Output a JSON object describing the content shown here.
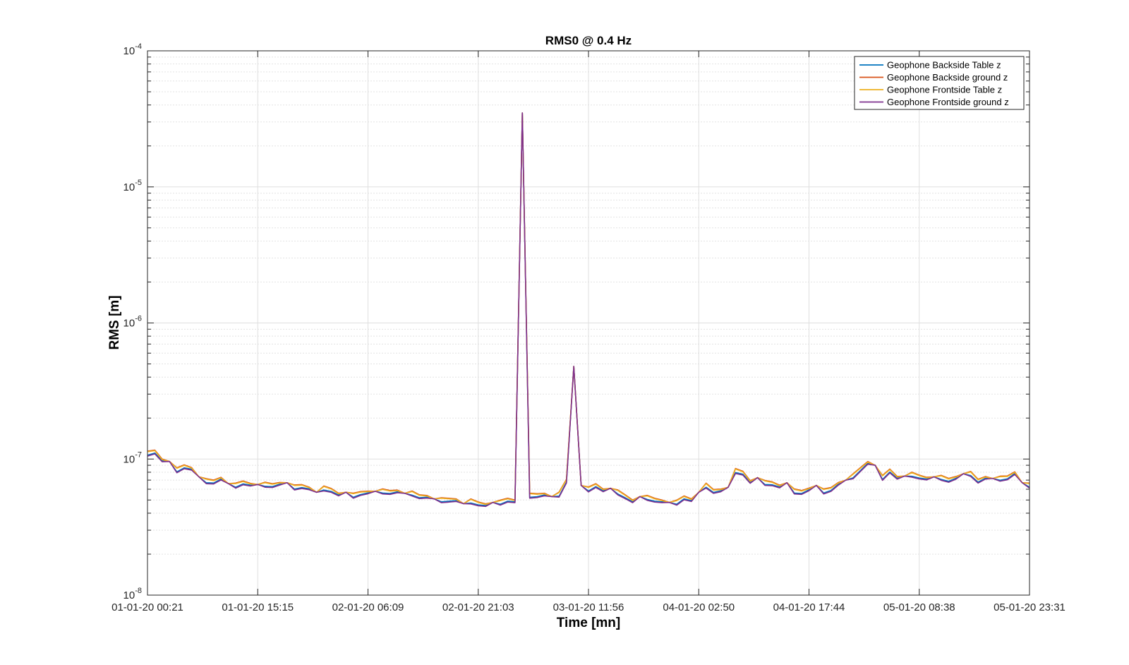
{
  "chart_data": {
    "type": "line",
    "title": "RMS0 @ 0.4 Hz",
    "xlabel": "Time [mn]",
    "ylabel": "RMS [m]",
    "yscale": "log",
    "ylim": [
      1e-08,
      0.0001
    ],
    "y_ticks": [
      {
        "base": "10",
        "exp": "-8"
      },
      {
        "base": "10",
        "exp": "-7"
      },
      {
        "base": "10",
        "exp": "-6"
      },
      {
        "base": "10",
        "exp": "-5"
      },
      {
        "base": "10",
        "exp": "-4"
      }
    ],
    "x_tick_labels": [
      "01-01-20 00:21",
      "01-01-20 15:15",
      "02-01-20 06:09",
      "02-01-20 21:03",
      "03-01-20 11:56",
      "04-01-20 02:50",
      "04-01-20 17:44",
      "05-01-20 08:38",
      "05-01-20 23:31"
    ],
    "grid": true,
    "legend_position": "top-right",
    "series_colors": [
      "#0072BD",
      "#D95319",
      "#EDB120",
      "#7E2F8E"
    ],
    "base_profile_e-8": [
      11.0,
      11.3,
      9.8,
      9.6,
      8.3,
      8.8,
      8.5,
      7.4,
      6.9,
      6.8,
      7.2,
      6.6,
      6.4,
      6.7,
      6.5,
      6.5,
      6.5,
      6.4,
      6.6,
      6.7,
      6.2,
      6.3,
      6.1,
      5.7,
      6.1,
      5.9,
      5.5,
      5.7,
      5.4,
      5.6,
      5.7,
      5.8,
      5.8,
      5.7,
      5.8,
      5.6,
      5.6,
      5.3,
      5.3,
      5.1,
      5.0,
      5.0,
      5.0,
      4.7,
      4.9,
      4.7,
      4.6,
      4.8,
      4.8,
      5.0,
      4.9,
      3500,
      5.4,
      5.4,
      5.5,
      5.3,
      5.5,
      6.9,
      48,
      6.4,
      6.0,
      6.4,
      5.9,
      6.1,
      5.7,
      5.3,
      4.9,
      5.3,
      5.2,
      5.0,
      4.9,
      4.8,
      4.8,
      5.2,
      5.0,
      5.7,
      6.4,
      5.8,
      5.9,
      6.2,
      8.2,
      7.9,
      6.8,
      7.3,
      6.7,
      6.6,
      6.3,
      6.7,
      5.8,
      5.7,
      6.0,
      6.4,
      5.8,
      6.0,
      6.6,
      7.0,
      7.5,
      8.4,
      9.4,
      9.0,
      7.3,
      8.2,
      7.3,
      7.5,
      7.7,
      7.4,
      7.2,
      7.4,
      7.3,
      7.0,
      7.3,
      7.8,
      7.8,
      6.9,
      7.3,
      7.2,
      7.2,
      7.3,
      7.9,
      6.7,
      6.4
    ],
    "series": [
      {
        "name": "Geophone Backside Table z",
        "multipliers": [
          0.97,
          0.98,
          0.99,
          1.0
        ]
      },
      {
        "name": "Geophone Backside ground z",
        "multipliers": [
          1.04,
          1.03,
          1.02,
          1.0
        ]
      },
      {
        "name": "Geophone Frontside Table z",
        "multipliers": [
          1.03,
          1.02,
          1.01,
          1.0
        ]
      },
      {
        "name": "Geophone Frontside ground z",
        "multipliers": [
          0.955,
          0.965,
          0.975,
          1.0
        ]
      }
    ]
  }
}
